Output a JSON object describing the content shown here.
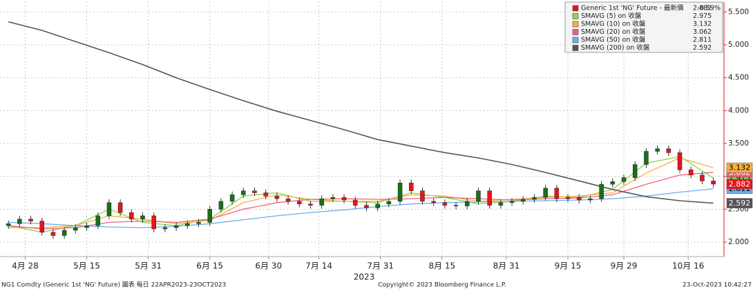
{
  "chart_data": {
    "type": "candlestick",
    "xlabel": "2023",
    "xlim": [
      -0.5,
      128.9
    ],
    "xticks": [
      {
        "value": 4,
        "label": "4月 28"
      },
      {
        "value": 15,
        "label": "5月 15"
      },
      {
        "value": 26,
        "label": "5月 31"
      },
      {
        "value": 37,
        "label": "6月 15"
      },
      {
        "value": 47.5,
        "label": "6月 30"
      },
      {
        "value": 56.5,
        "label": "7月 14"
      },
      {
        "value": 67.5,
        "label": "7月 31"
      },
      {
        "value": 78.5,
        "label": "8月 15"
      },
      {
        "value": 90,
        "label": "8月 31"
      },
      {
        "value": 101,
        "label": "9月 15"
      },
      {
        "value": 111,
        "label": "9月 29"
      },
      {
        "value": 122.5,
        "label": "10月 16"
      }
    ],
    "ylim": [
      1.78,
      5.65
    ],
    "yticks": [
      {
        "value": 2,
        "label": "2.000"
      },
      {
        "value": 2.5,
        "label": "2.500"
      },
      {
        "value": 3,
        "label": "3.000"
      },
      {
        "value": 3.5,
        "label": "3.500"
      },
      {
        "value": 4,
        "label": "4.000"
      },
      {
        "value": 4.5,
        "label": "4.500"
      },
      {
        "value": 5,
        "label": "5.000"
      },
      {
        "value": 5.5,
        "label": "5.500"
      }
    ],
    "grid": true,
    "legend": "upper right",
    "candles": {
      "name": "Generic 1st 'NG' Future - 最新價",
      "color": "#e3161b",
      "up_color": "#1b6e1b",
      "down_color": "#e3161b",
      "last": 2.882,
      "change": {
        "value": -0.59,
        "label": "-0.59%"
      },
      "x": [
        1,
        3,
        5,
        7,
        9,
        11,
        13,
        15,
        17,
        19,
        21,
        23,
        25,
        27,
        29,
        31,
        33,
        35,
        37,
        39,
        41,
        43,
        45,
        47,
        49,
        51,
        53,
        55,
        57,
        59,
        61,
        63,
        65,
        67,
        69,
        71,
        73,
        75,
        77,
        79,
        81,
        83,
        85,
        87,
        89,
        91,
        93,
        95,
        97,
        99,
        101,
        103,
        105,
        107,
        109,
        111,
        113,
        115,
        117,
        119,
        121,
        123,
        125,
        127
      ],
      "open": [
        2.25,
        2.28,
        2.35,
        2.32,
        2.15,
        2.1,
        2.18,
        2.22,
        2.25,
        2.4,
        2.6,
        2.45,
        2.35,
        2.4,
        2.2,
        2.22,
        2.25,
        2.28,
        2.3,
        2.5,
        2.62,
        2.72,
        2.78,
        2.75,
        2.7,
        2.66,
        2.62,
        2.58,
        2.56,
        2.66,
        2.68,
        2.64,
        2.56,
        2.52,
        2.58,
        2.62,
        2.9,
        2.78,
        2.62,
        2.6,
        2.56,
        2.55,
        2.62,
        2.78,
        2.56,
        2.6,
        2.62,
        2.65,
        2.68,
        2.82,
        2.66,
        2.68,
        2.64,
        2.66,
        2.88,
        2.92,
        2.98,
        3.18,
        3.38,
        3.42,
        3.36,
        3.1,
        3.02,
        2.93
      ],
      "high": [
        2.33,
        2.4,
        2.4,
        2.37,
        2.2,
        2.23,
        2.27,
        2.3,
        2.45,
        2.65,
        2.65,
        2.5,
        2.45,
        2.45,
        2.27,
        2.3,
        2.33,
        2.35,
        2.55,
        2.67,
        2.77,
        2.83,
        2.83,
        2.8,
        2.75,
        2.71,
        2.67,
        2.63,
        2.71,
        2.73,
        2.73,
        2.69,
        2.61,
        2.63,
        2.67,
        2.95,
        2.95,
        2.83,
        2.67,
        2.65,
        2.61,
        2.67,
        2.83,
        2.83,
        2.65,
        2.67,
        2.7,
        2.73,
        2.87,
        2.87,
        2.73,
        2.73,
        2.71,
        2.93,
        2.97,
        3.03,
        3.23,
        3.43,
        3.47,
        3.47,
        3.41,
        3.15,
        3.07,
        2.98
      ],
      "low": [
        2.2,
        2.23,
        2.27,
        2.1,
        2.05,
        2.05,
        2.13,
        2.17,
        2.2,
        2.35,
        2.4,
        2.3,
        2.3,
        2.15,
        2.15,
        2.17,
        2.2,
        2.23,
        2.25,
        2.45,
        2.57,
        2.67,
        2.7,
        2.65,
        2.61,
        2.57,
        2.53,
        2.51,
        2.51,
        2.61,
        2.59,
        2.51,
        2.47,
        2.47,
        2.53,
        2.57,
        2.73,
        2.57,
        2.55,
        2.51,
        2.5,
        2.5,
        2.57,
        2.51,
        2.51,
        2.55,
        2.57,
        2.6,
        2.63,
        2.61,
        2.61,
        2.59,
        2.59,
        2.61,
        2.83,
        2.87,
        2.93,
        3.13,
        3.33,
        3.31,
        3.05,
        2.97,
        2.88,
        2.83
      ],
      "close": [
        2.28,
        2.35,
        2.32,
        2.15,
        2.1,
        2.18,
        2.22,
        2.25,
        2.4,
        2.6,
        2.45,
        2.35,
        2.4,
        2.2,
        2.22,
        2.25,
        2.28,
        2.3,
        2.5,
        2.62,
        2.72,
        2.78,
        2.75,
        2.7,
        2.66,
        2.62,
        2.58,
        2.56,
        2.66,
        2.68,
        2.64,
        2.56,
        2.52,
        2.58,
        2.62,
        2.9,
        2.78,
        2.62,
        2.6,
        2.56,
        2.55,
        2.62,
        2.78,
        2.56,
        2.6,
        2.62,
        2.65,
        2.68,
        2.82,
        2.66,
        2.68,
        2.64,
        2.66,
        2.88,
        2.92,
        2.98,
        3.18,
        3.38,
        3.42,
        3.36,
        3.1,
        3.02,
        2.93,
        2.882
      ]
    },
    "sma_x": [
      1,
      7,
      13,
      19,
      25,
      31,
      37,
      43,
      49,
      55,
      61,
      67,
      73,
      79,
      85,
      91,
      97,
      103,
      109,
      115,
      121,
      127
    ],
    "series": [
      {
        "name": "SMAVG (5)  on 收盤",
        "color": "#8fd14f",
        "last": 2.975,
        "values": [
          2.25,
          2.15,
          2.25,
          2.5,
          2.3,
          2.25,
          2.35,
          2.7,
          2.75,
          2.62,
          2.62,
          2.6,
          2.75,
          2.68,
          2.58,
          2.62,
          2.7,
          2.68,
          2.8,
          3.2,
          3.3,
          2.975
        ]
      },
      {
        "name": "SMAVG (10)  on 收盤",
        "color": "#f5b041",
        "last": 3.132,
        "values": [
          2.22,
          2.22,
          2.25,
          2.4,
          2.35,
          2.28,
          2.33,
          2.6,
          2.72,
          2.65,
          2.62,
          2.62,
          2.72,
          2.7,
          2.62,
          2.65,
          2.68,
          2.7,
          2.75,
          3.05,
          3.28,
          3.132
        ]
      },
      {
        "name": "SMAVG (20)  on 收盤",
        "color": "#f06277",
        "last": 3.062,
        "values": [
          2.25,
          2.2,
          2.22,
          2.3,
          2.32,
          2.3,
          2.35,
          2.5,
          2.6,
          2.65,
          2.66,
          2.65,
          2.66,
          2.68,
          2.66,
          2.64,
          2.66,
          2.67,
          2.72,
          2.88,
          3.02,
          3.062
        ]
      },
      {
        "name": "SMAVG (50)  on 收盤",
        "color": "#6aaef0",
        "last": 2.811,
        "values": [
          2.3,
          2.28,
          2.25,
          2.23,
          2.22,
          2.24,
          2.28,
          2.34,
          2.4,
          2.45,
          2.49,
          2.54,
          2.58,
          2.6,
          2.61,
          2.62,
          2.63,
          2.64,
          2.66,
          2.7,
          2.76,
          2.811
        ]
      },
      {
        "name": "SMAVG (200)  on 收盤",
        "color": "#555555",
        "last": 2.592,
        "values": [
          5.35,
          5.22,
          5.05,
          4.88,
          4.7,
          4.5,
          4.32,
          4.15,
          3.99,
          3.85,
          3.71,
          3.56,
          3.46,
          3.36,
          3.28,
          3.18,
          3.06,
          2.93,
          2.8,
          2.69,
          2.63,
          2.592
        ]
      }
    ]
  },
  "footer": {
    "left": "NG1 Comdty (Generic 1st 'NG' Future) 圖表  每日 22APR2023-23OCT2023",
    "center": "Copyright© 2023 Bloomberg Finance L.P.",
    "right": "23-Oct-2023 10:42:27"
  }
}
